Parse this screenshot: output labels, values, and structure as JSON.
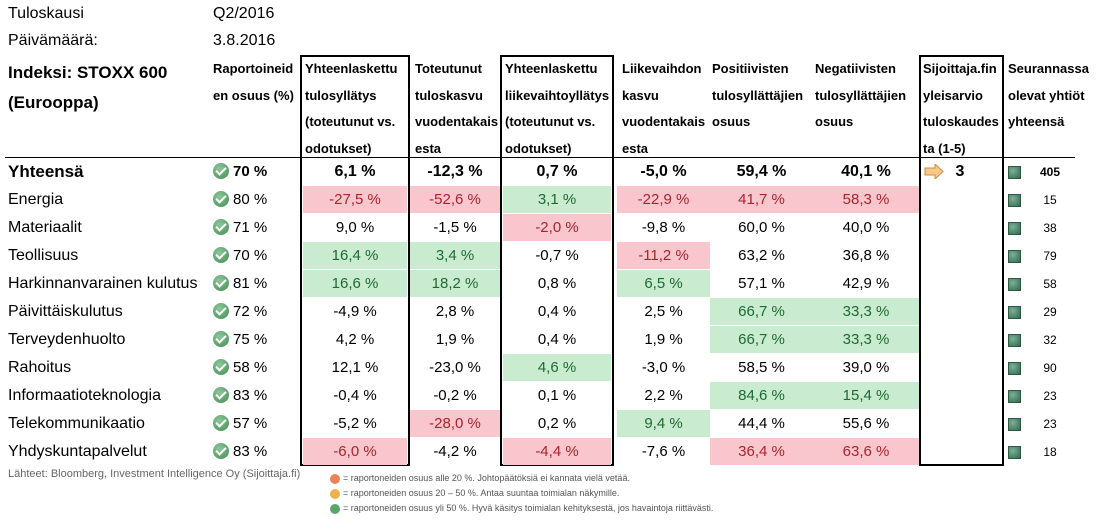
{
  "meta": {
    "period_label": "Tuloskausi",
    "period_value": "Q2/2016",
    "date_label": "Päivämäärä:",
    "date_value": "3.8.2016",
    "index_title_1": "Indeksi: STOXX 600",
    "index_title_2": "(Eurooppa)"
  },
  "headers": [
    [
      "Raportoineid",
      "en osuus (%)"
    ],
    [
      "Yhteenlaskettu",
      "tulosyllätys",
      "(toteutunut vs.",
      "odotukset)"
    ],
    [
      "Toteutunut",
      "tuloskasvu",
      "vuodentakais",
      "esta"
    ],
    [
      "Yhteenlaskettu",
      "liikevaihtoyllätys",
      "(toteutunut vs.",
      "odotukset)"
    ],
    [
      "Liikevaihdon",
      "kasvu",
      "vuodentakais",
      "esta"
    ],
    [
      "Positiivisten",
      "tulosyllättäjien",
      "osuus"
    ],
    [
      "Negatiivisten",
      "tulosyllättäjien",
      "osuus"
    ],
    [
      "Sijoittaja.fin",
      "yleisarvio",
      "tuloskaudes",
      "ta (1-5)"
    ],
    [
      "Seurannassa",
      "olevat yhtiöt",
      "yhteensä"
    ]
  ],
  "total": {
    "label": "Yhteensä",
    "reported": "70 %",
    "earnings_surprise": "6,1 %",
    "earnings_growth": "-12,3 %",
    "revenue_surprise": "0,7 %",
    "revenue_growth": "-5,0 %",
    "positive_share": "59,4 %",
    "negative_share": "40,1 %",
    "rating": "3",
    "count": "405"
  },
  "rows": [
    {
      "label": "Energia",
      "reported": "80 %",
      "earnings_surprise": "-27,5 %",
      "earnings_growth": "-52,6 %",
      "revenue_surprise": "3,1 %",
      "revenue_growth": "-22,9 %",
      "positive_share": "41,7 %",
      "negative_share": "58,3 %",
      "count": "15"
    },
    {
      "label": "Materiaalit",
      "reported": "71 %",
      "earnings_surprise": "9,0 %",
      "earnings_growth": "-1,5 %",
      "revenue_surprise": "-2,0 %",
      "revenue_growth": "-9,8 %",
      "positive_share": "60,0 %",
      "negative_share": "40,0 %",
      "count": "38"
    },
    {
      "label": "Teollisuus",
      "reported": "70 %",
      "earnings_surprise": "16,4 %",
      "earnings_growth": "3,4 %",
      "revenue_surprise": "-0,7 %",
      "revenue_growth": "-11,2 %",
      "positive_share": "63,2 %",
      "negative_share": "36,8 %",
      "count": "79"
    },
    {
      "label": "Harkinnanvarainen kulutus",
      "reported": "81 %",
      "earnings_surprise": "16,6 %",
      "earnings_growth": "18,2 %",
      "revenue_surprise": "0,8 %",
      "revenue_growth": "6,5 %",
      "positive_share": "57,1 %",
      "negative_share": "42,9 %",
      "count": "58"
    },
    {
      "label": "Päivittäiskulutus",
      "reported": "72 %",
      "earnings_surprise": "-4,9 %",
      "earnings_growth": "2,8 %",
      "revenue_surprise": "0,4 %",
      "revenue_growth": "2,5 %",
      "positive_share": "66,7 %",
      "negative_share": "33,3 %",
      "count": "29"
    },
    {
      "label": "Terveydenhuolto",
      "reported": "75 %",
      "earnings_surprise": "4,2 %",
      "earnings_growth": "1,9 %",
      "revenue_surprise": "0,4 %",
      "revenue_growth": "1,9 %",
      "positive_share": "66,7 %",
      "negative_share": "33,3 %",
      "count": "32"
    },
    {
      "label": "Rahoitus",
      "reported": "58 %",
      "earnings_surprise": "12,1 %",
      "earnings_growth": "-23,0 %",
      "revenue_surprise": "4,6 %",
      "revenue_growth": "-3,0 %",
      "positive_share": "58,5 %",
      "negative_share": "39,0 %",
      "count": "90"
    },
    {
      "label": "Informaatioteknologia",
      "reported": "83 %",
      "earnings_surprise": "-0,4 %",
      "earnings_growth": "-0,2 %",
      "revenue_surprise": "0,1 %",
      "revenue_growth": "2,2 %",
      "positive_share": "84,6 %",
      "negative_share": "15,4 %",
      "count": "23"
    },
    {
      "label": "Telekommunikaatio",
      "reported": "57 %",
      "earnings_surprise": "-5,2 %",
      "earnings_growth": "-28,0 %",
      "revenue_surprise": "0,2 %",
      "revenue_growth": "9,4 %",
      "positive_share": "44,4 %",
      "negative_share": "55,6 %",
      "count": "23"
    },
    {
      "label": "Yhdyskuntapalvelut",
      "reported": "83 %",
      "earnings_surprise": "-6,0 %",
      "earnings_growth": "-4,2 %",
      "revenue_surprise": "-4,4 %",
      "revenue_growth": "-7,6 %",
      "positive_share": "36,4 %",
      "negative_share": "63,6 %",
      "count": "18"
    }
  ],
  "footer": {
    "source": "Lähteet: Bloomberg, Investment Intelligence Oy (Sijoittaja.fi)",
    "legend": [
      {
        "text": "= raportoneiden osuus alle 20 %. Johtopäätöksiä ei kannata vielä vetää.",
        "color": "#e8835a"
      },
      {
        "text": "= raportoneiden osuus 20 – 50 %. Antaa suuntaa toimialan näkymille.",
        "color": "#f0b04a"
      },
      {
        "text": "= raportoneiden osuus yli 50 %. Hyvä käsitys toimialan kehityksestä, jos havaintoja riittävästi.",
        "color": "#5aa56e"
      }
    ]
  },
  "colors": {
    "negative_bg": "#f8c6cc",
    "negative_fg": "#a8252d",
    "positive_bg": "#c9ebd0",
    "positive_fg": "#1d6a31"
  }
}
